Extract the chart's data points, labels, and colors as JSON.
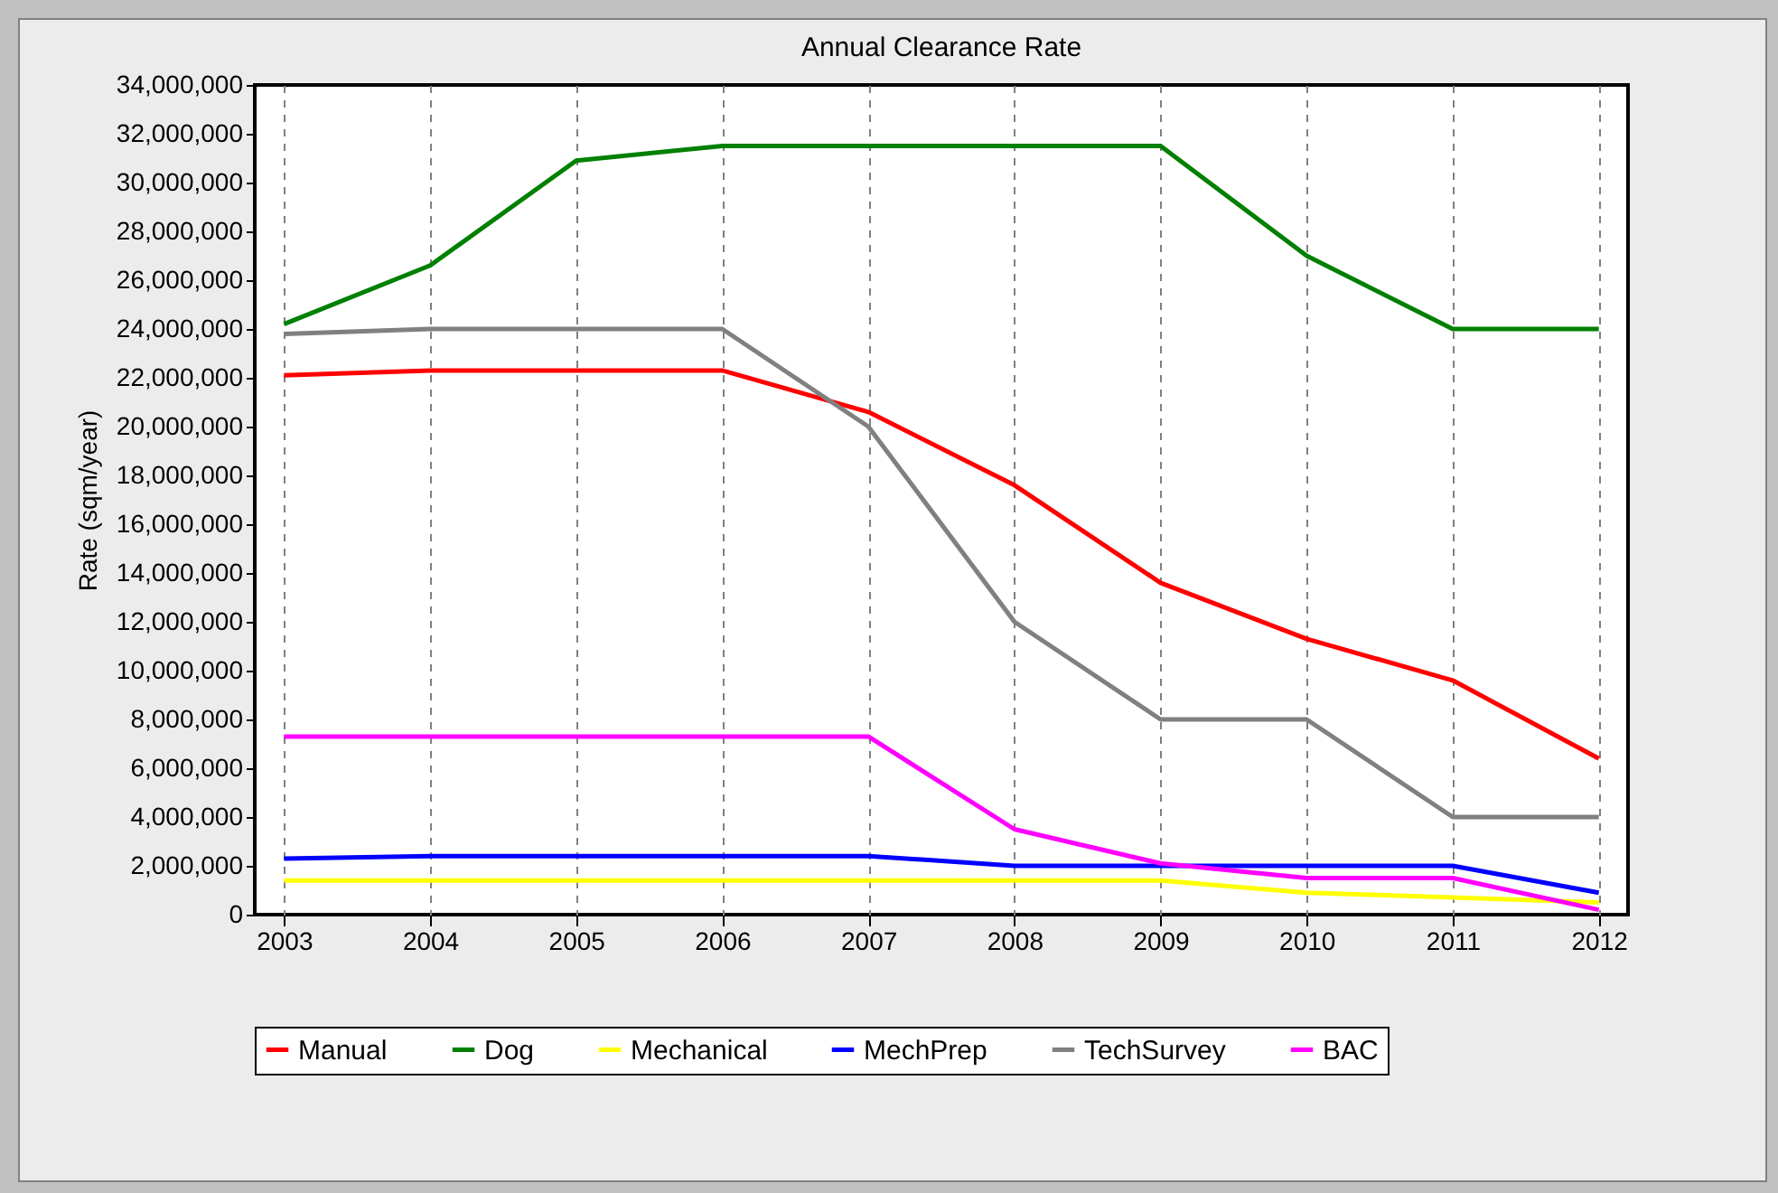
{
  "chart_data": {
    "type": "line",
    "title": "Annual Clearance Rate",
    "ylabel": "Rate (sqm/year)",
    "categories": [
      "2003",
      "2004",
      "2005",
      "2006",
      "2007",
      "2008",
      "2009",
      "2010",
      "2011",
      "2012"
    ],
    "series": [
      {
        "name": "Manual",
        "color": "#ff0000",
        "values": [
          22100000,
          22300000,
          22300000,
          22300000,
          20600000,
          17600000,
          13600000,
          11300000,
          9600000,
          6400000
        ]
      },
      {
        "name": "Dog",
        "color": "#008000",
        "values": [
          24200000,
          26600000,
          30900000,
          31500000,
          31500000,
          31500000,
          31500000,
          27000000,
          24000000,
          24000000
        ]
      },
      {
        "name": "Mechanical",
        "color": "#ffff00",
        "values": [
          1400000,
          1400000,
          1400000,
          1400000,
          1400000,
          1400000,
          1400000,
          900000,
          700000,
          500000
        ]
      },
      {
        "name": "MechPrep",
        "color": "#0000ff",
        "values": [
          2300000,
          2400000,
          2400000,
          2400000,
          2400000,
          2000000,
          2000000,
          2000000,
          2000000,
          900000
        ]
      },
      {
        "name": "TechSurvey",
        "color": "#808080",
        "values": [
          23800000,
          24000000,
          24000000,
          24000000,
          20000000,
          12000000,
          8000000,
          8000000,
          4000000,
          4000000
        ]
      },
      {
        "name": "BAC",
        "color": "#ff00ff",
        "values": [
          7300000,
          7300000,
          7300000,
          7300000,
          7300000,
          3500000,
          2100000,
          1500000,
          1500000,
          200000
        ]
      }
    ],
    "ylim": [
      0,
      34000000
    ],
    "yticks": [
      0,
      {
        "value": 2000000,
        "label": "2,000,000"
      },
      {
        "value": 4000000,
        "label": "4,000,000"
      },
      {
        "value": 6000000,
        "label": "6,000,000"
      },
      {
        "value": 8000000,
        "label": "8,000,000"
      },
      {
        "value": 10000000,
        "label": "10,000,000"
      },
      {
        "value": 12000000,
        "label": "12,000,000"
      },
      {
        "value": 14000000,
        "label": "14,000,000"
      },
      {
        "value": 16000000,
        "label": "16,000,000"
      },
      {
        "value": 18000000,
        "label": "18,000,000"
      },
      {
        "value": 20000000,
        "label": "20,000,000"
      },
      {
        "value": 22000000,
        "label": "22,000,000"
      },
      {
        "value": 24000000,
        "label": "24,000,000"
      },
      {
        "value": 26000000,
        "label": "26,000,000"
      },
      {
        "value": 28000000,
        "label": "28,000,000"
      },
      {
        "value": 30000000,
        "label": "30,000,000"
      },
      {
        "value": 32000000,
        "label": "32,000,000"
      },
      {
        "value": 34000000,
        "label": "34,000,000"
      }
    ],
    "grid": "x",
    "legend": "bottom",
    "marker": "none",
    "line_style": "solid"
  }
}
